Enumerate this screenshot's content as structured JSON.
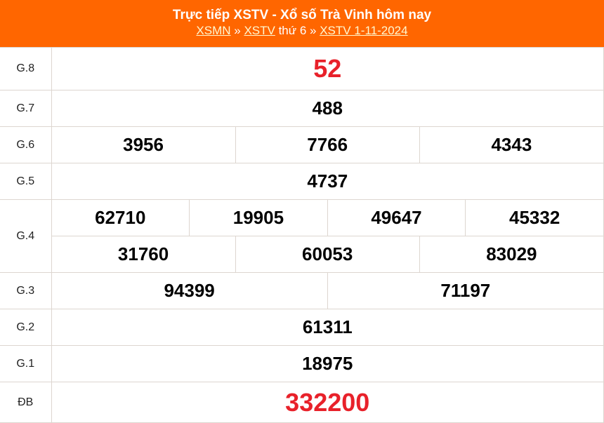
{
  "header": {
    "title": "Trực tiếp XSTV - Xổ số Trà Vinh hôm nay",
    "crumb1": "XSMN",
    "sep": " » ",
    "crumb2": "XSTV",
    "mid": " thứ 6",
    "crumb3": "XSTV 1-11-2024"
  },
  "colors": {
    "header_bg": "#ff6600",
    "highlight": "#e8212a"
  },
  "prizes": {
    "g8": {
      "label": "G.8",
      "values": [
        "52"
      ]
    },
    "g7": {
      "label": "G.7",
      "values": [
        "488"
      ]
    },
    "g6": {
      "label": "G.6",
      "values": [
        "3956",
        "7766",
        "4343"
      ]
    },
    "g5": {
      "label": "G.5",
      "values": [
        "4737"
      ]
    },
    "g4": {
      "label": "G.4",
      "values": [
        "62710",
        "19905",
        "49647",
        "45332",
        "31760",
        "60053",
        "83029"
      ]
    },
    "g3": {
      "label": "G.3",
      "values": [
        "94399",
        "71197"
      ]
    },
    "g2": {
      "label": "G.2",
      "values": [
        "61311"
      ]
    },
    "g1": {
      "label": "G.1",
      "values": [
        "18975"
      ]
    },
    "db": {
      "label": "ĐB",
      "values": [
        "332200"
      ]
    }
  }
}
